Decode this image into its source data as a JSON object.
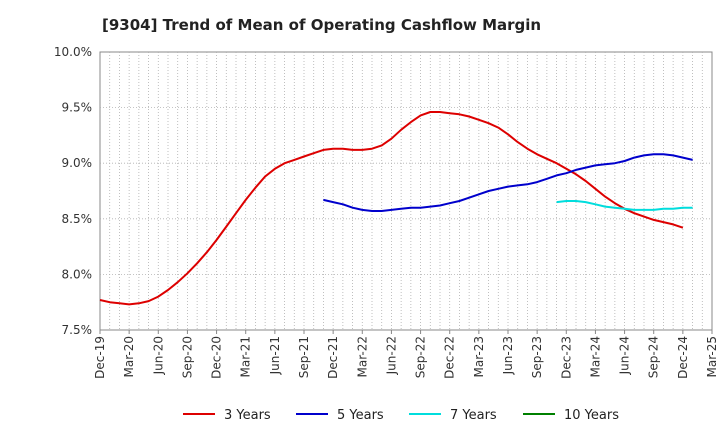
{
  "chart_data": {
    "type": "line",
    "title": "[9304]  Trend of Mean of Operating Cashflow Margin",
    "xlabel": "",
    "ylabel": "",
    "ylim": [
      7.5,
      10.0
    ],
    "y_ticks": [
      "7.5%",
      "8.0%",
      "8.5%",
      "9.0%",
      "9.5%",
      "10.0%"
    ],
    "x_ticks": [
      "Dec-19",
      "Mar-20",
      "Jun-20",
      "Sep-20",
      "Dec-20",
      "Mar-21",
      "Jun-21",
      "Sep-21",
      "Dec-21",
      "Mar-22",
      "Jun-22",
      "Sep-22",
      "Dec-22",
      "Mar-23",
      "Jun-23",
      "Sep-23",
      "Dec-23",
      "Mar-24",
      "Jun-24",
      "Sep-24",
      "Dec-24",
      "Mar-25"
    ],
    "grid": true,
    "legend_position": "bottom",
    "series": [
      {
        "name": "3 Years",
        "color": "#dd0000",
        "values": [
          [
            "Dec-19",
            7.77
          ],
          [
            "Jan-20",
            7.75
          ],
          [
            "Feb-20",
            7.74
          ],
          [
            "Mar-20",
            7.73
          ],
          [
            "Apr-20",
            7.74
          ],
          [
            "May-20",
            7.76
          ],
          [
            "Jun-20",
            7.8
          ],
          [
            "Jul-20",
            7.86
          ],
          [
            "Aug-20",
            7.93
          ],
          [
            "Sep-20",
            8.01
          ],
          [
            "Oct-20",
            8.1
          ],
          [
            "Nov-20",
            8.2
          ],
          [
            "Dec-20",
            8.31
          ],
          [
            "Jan-21",
            8.43
          ],
          [
            "Feb-21",
            8.55
          ],
          [
            "Mar-21",
            8.67
          ],
          [
            "Apr-21",
            8.78
          ],
          [
            "May-21",
            8.88
          ],
          [
            "Jun-21",
            8.95
          ],
          [
            "Jul-21",
            9.0
          ],
          [
            "Aug-21",
            9.03
          ],
          [
            "Sep-21",
            9.06
          ],
          [
            "Oct-21",
            9.09
          ],
          [
            "Nov-21",
            9.12
          ],
          [
            "Dec-21",
            9.13
          ],
          [
            "Jan-22",
            9.13
          ],
          [
            "Feb-22",
            9.12
          ],
          [
            "Mar-22",
            9.12
          ],
          [
            "Apr-22",
            9.13
          ],
          [
            "May-22",
            9.16
          ],
          [
            "Jun-22",
            9.22
          ],
          [
            "Jul-22",
            9.3
          ],
          [
            "Aug-22",
            9.37
          ],
          [
            "Sep-22",
            9.43
          ],
          [
            "Oct-22",
            9.46
          ],
          [
            "Nov-22",
            9.46
          ],
          [
            "Dec-22",
            9.45
          ],
          [
            "Jan-23",
            9.44
          ],
          [
            "Feb-23",
            9.42
          ],
          [
            "Mar-23",
            9.39
          ],
          [
            "Apr-23",
            9.36
          ],
          [
            "May-23",
            9.32
          ],
          [
            "Jun-23",
            9.26
          ],
          [
            "Jul-23",
            9.19
          ],
          [
            "Aug-23",
            9.13
          ],
          [
            "Sep-23",
            9.08
          ],
          [
            "Oct-23",
            9.04
          ],
          [
            "Nov-23",
            9.0
          ],
          [
            "Dec-23",
            8.95
          ],
          [
            "Jan-24",
            8.9
          ],
          [
            "Feb-24",
            8.84
          ],
          [
            "Mar-24",
            8.77
          ],
          [
            "Apr-24",
            8.7
          ],
          [
            "May-24",
            8.64
          ],
          [
            "Jun-24",
            8.59
          ],
          [
            "Jul-24",
            8.55
          ],
          [
            "Aug-24",
            8.52
          ],
          [
            "Sep-24",
            8.49
          ],
          [
            "Oct-24",
            8.47
          ],
          [
            "Nov-24",
            8.45
          ],
          [
            "Dec-24",
            8.42
          ]
        ]
      },
      {
        "name": "5 Years",
        "color": "#0000cc",
        "values": [
          [
            "Nov-21",
            8.67
          ],
          [
            "Dec-21",
            8.65
          ],
          [
            "Jan-22",
            8.63
          ],
          [
            "Feb-22",
            8.6
          ],
          [
            "Mar-22",
            8.58
          ],
          [
            "Apr-22",
            8.57
          ],
          [
            "May-22",
            8.57
          ],
          [
            "Jun-22",
            8.58
          ],
          [
            "Jul-22",
            8.59
          ],
          [
            "Aug-22",
            8.6
          ],
          [
            "Sep-22",
            8.6
          ],
          [
            "Oct-22",
            8.61
          ],
          [
            "Nov-22",
            8.62
          ],
          [
            "Dec-22",
            8.64
          ],
          [
            "Jan-23",
            8.66
          ],
          [
            "Feb-23",
            8.69
          ],
          [
            "Mar-23",
            8.72
          ],
          [
            "Apr-23",
            8.75
          ],
          [
            "May-23",
            8.77
          ],
          [
            "Jun-23",
            8.79
          ],
          [
            "Jul-23",
            8.8
          ],
          [
            "Aug-23",
            8.81
          ],
          [
            "Sep-23",
            8.83
          ],
          [
            "Oct-23",
            8.86
          ],
          [
            "Nov-23",
            8.89
          ],
          [
            "Dec-23",
            8.91
          ],
          [
            "Jan-24",
            8.94
          ],
          [
            "Feb-24",
            8.96
          ],
          [
            "Mar-24",
            8.98
          ],
          [
            "Apr-24",
            8.99
          ],
          [
            "May-24",
            9.0
          ],
          [
            "Jun-24",
            9.02
          ],
          [
            "Jul-24",
            9.05
          ],
          [
            "Aug-24",
            9.07
          ],
          [
            "Sep-24",
            9.08
          ],
          [
            "Oct-24",
            9.08
          ],
          [
            "Nov-24",
            9.07
          ],
          [
            "Dec-24",
            9.05
          ],
          [
            "Jan-25",
            9.03
          ]
        ]
      },
      {
        "name": "7 Years",
        "color": "#00dddd",
        "values": [
          [
            "Nov-23",
            8.65
          ],
          [
            "Dec-23",
            8.66
          ],
          [
            "Jan-24",
            8.66
          ],
          [
            "Feb-24",
            8.65
          ],
          [
            "Mar-24",
            8.63
          ],
          [
            "Apr-24",
            8.61
          ],
          [
            "May-24",
            8.6
          ],
          [
            "Jun-24",
            8.59
          ],
          [
            "Jul-24",
            8.58
          ],
          [
            "Aug-24",
            8.58
          ],
          [
            "Sep-24",
            8.58
          ],
          [
            "Oct-24",
            8.59
          ],
          [
            "Nov-24",
            8.59
          ],
          [
            "Dec-24",
            8.6
          ],
          [
            "Jan-25",
            8.6
          ]
        ]
      },
      {
        "name": "10 Years",
        "color": "#008000",
        "values": []
      }
    ]
  }
}
